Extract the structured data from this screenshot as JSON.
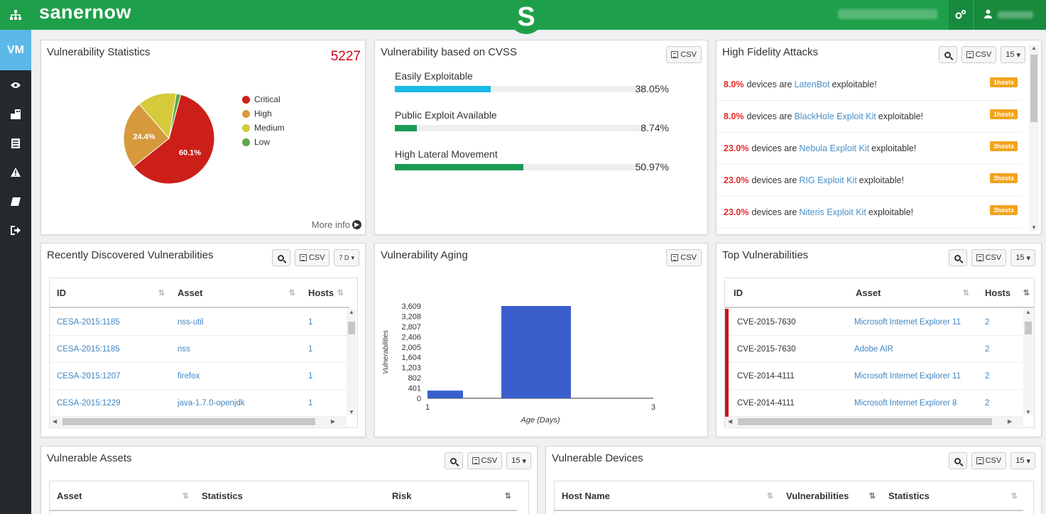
{
  "app": {
    "brand": "sanernow",
    "logo_letter": "S"
  },
  "header": {
    "settings_icon": "cogs-icon",
    "user_icon": "user-icon"
  },
  "sidebar": {
    "items": [
      {
        "label": "VM",
        "active": true
      },
      {
        "icon": "eye-icon"
      },
      {
        "icon": "building-icon"
      },
      {
        "icon": "list-icon"
      },
      {
        "icon": "warning-icon"
      },
      {
        "icon": "book-icon"
      },
      {
        "icon": "signout-icon"
      }
    ]
  },
  "vuln_stats": {
    "title": "Vulnerability Statistics",
    "count": "5227",
    "more_info": "More info",
    "legend": [
      {
        "label": "Critical",
        "color": "#cc1f1a"
      },
      {
        "label": "High",
        "color": "#d69a3c"
      },
      {
        "label": "Medium",
        "color": "#d6c93a"
      },
      {
        "label": "Low",
        "color": "#5ca84a"
      }
    ],
    "pie_labels": {
      "critical": "60.1%",
      "high": "24.4%"
    },
    "chart_data": {
      "type": "pie",
      "categories": [
        "Critical",
        "High",
        "Medium",
        "Low"
      ],
      "values": [
        60.1,
        24.4,
        13.9,
        1.6
      ]
    }
  },
  "cvss": {
    "title": "Vulnerability based on CVSS",
    "csv": "CSV",
    "rows": [
      {
        "label": "Easily Exploitable",
        "pct": "38.05%",
        "value": 38.05,
        "color": "#1ab9e6"
      },
      {
        "label": "Public Exploit Available",
        "pct": "8.74%",
        "value": 8.74,
        "color": "#1a9b55"
      },
      {
        "label": "High Lateral Movement",
        "pct": "50.97%",
        "value": 50.97,
        "color": "#1a9b55"
      }
    ]
  },
  "hfa": {
    "title": "High Fidelity Attacks",
    "csv": "CSV",
    "page_size": "15",
    "rows": [
      {
        "pct": "8.0%",
        "pre": "devices are",
        "link": "LatenBot",
        "post": "exploitable!",
        "badge": "1hosts"
      },
      {
        "pct": "8.0%",
        "pre": "devices are",
        "link": "BlackHole Exploit Kit",
        "post": "exploitable!",
        "badge": "1hosts"
      },
      {
        "pct": "23.0%",
        "pre": "devices are",
        "link": "Nebula Exploit Kit",
        "post": "exploitable!",
        "badge": "3hosts"
      },
      {
        "pct": "23.0%",
        "pre": "devices are",
        "link": "RIG Exploit Kit",
        "post": "exploitable!",
        "badge": "3hosts"
      },
      {
        "pct": "23.0%",
        "pre": "devices are",
        "link": "Niteris Exploit Kit",
        "post": "exploitable!",
        "badge": "3hosts"
      }
    ]
  },
  "recent": {
    "title": "Recently Discovered Vulnerabilities",
    "csv": "CSV",
    "page_size": "7 D",
    "columns": [
      "ID",
      "Asset",
      "Hosts"
    ],
    "rows": [
      {
        "id": "CESA-2015:1185",
        "asset": "nss-util",
        "hosts": "1"
      },
      {
        "id": "CESA-2015:1185",
        "asset": "nss",
        "hosts": "1"
      },
      {
        "id": "CESA-2015:1207",
        "asset": "firefox",
        "hosts": "1"
      },
      {
        "id": "CESA-2015:1229",
        "asset": "java-1.7.0-openjdk",
        "hosts": "1"
      }
    ]
  },
  "aging": {
    "title": "Vulnerability Aging",
    "csv": "CSV",
    "chart_data": {
      "type": "bar",
      "x": [
        1,
        2
      ],
      "values": [
        300,
        3609
      ],
      "xlabel": "Age (Days)",
      "ylabel": "Vulnerabilities",
      "ylim": [
        0,
        3609
      ],
      "xlim": [
        1,
        3
      ],
      "yticks": [
        "0",
        "401",
        "802",
        "1,203",
        "1,604",
        "2,005",
        "2,406",
        "2,807",
        "3,208",
        "3,609"
      ],
      "xticks": [
        "1",
        "3"
      ],
      "color": "#3a5fcd"
    }
  },
  "top": {
    "title": "Top Vulnerabilities",
    "csv": "CSV",
    "page_size": "15",
    "columns": [
      "ID",
      "Asset",
      "Hosts"
    ],
    "rows": [
      {
        "id": "CVE-2015-7630",
        "asset": "Microsoft Internet Explorer 11",
        "hosts": "2"
      },
      {
        "id": "CVE-2015-7630",
        "asset": "Adobe AIR",
        "hosts": "2"
      },
      {
        "id": "CVE-2014-4111",
        "asset": "Microsoft Internet Explorer 11",
        "hosts": "2"
      },
      {
        "id": "CVE-2014-4111",
        "asset": "Microsoft Internet Explorer 8",
        "hosts": "2"
      }
    ]
  },
  "assets": {
    "title": "Vulnerable Assets",
    "csv": "CSV",
    "page_size": "15",
    "columns": [
      "Asset",
      "Statistics",
      "Risk"
    ]
  },
  "devices": {
    "title": "Vulnerable Devices",
    "csv": "CSV",
    "page_size": "15",
    "columns": [
      "Host Name",
      "Vulnerabilities",
      "Statistics"
    ]
  }
}
